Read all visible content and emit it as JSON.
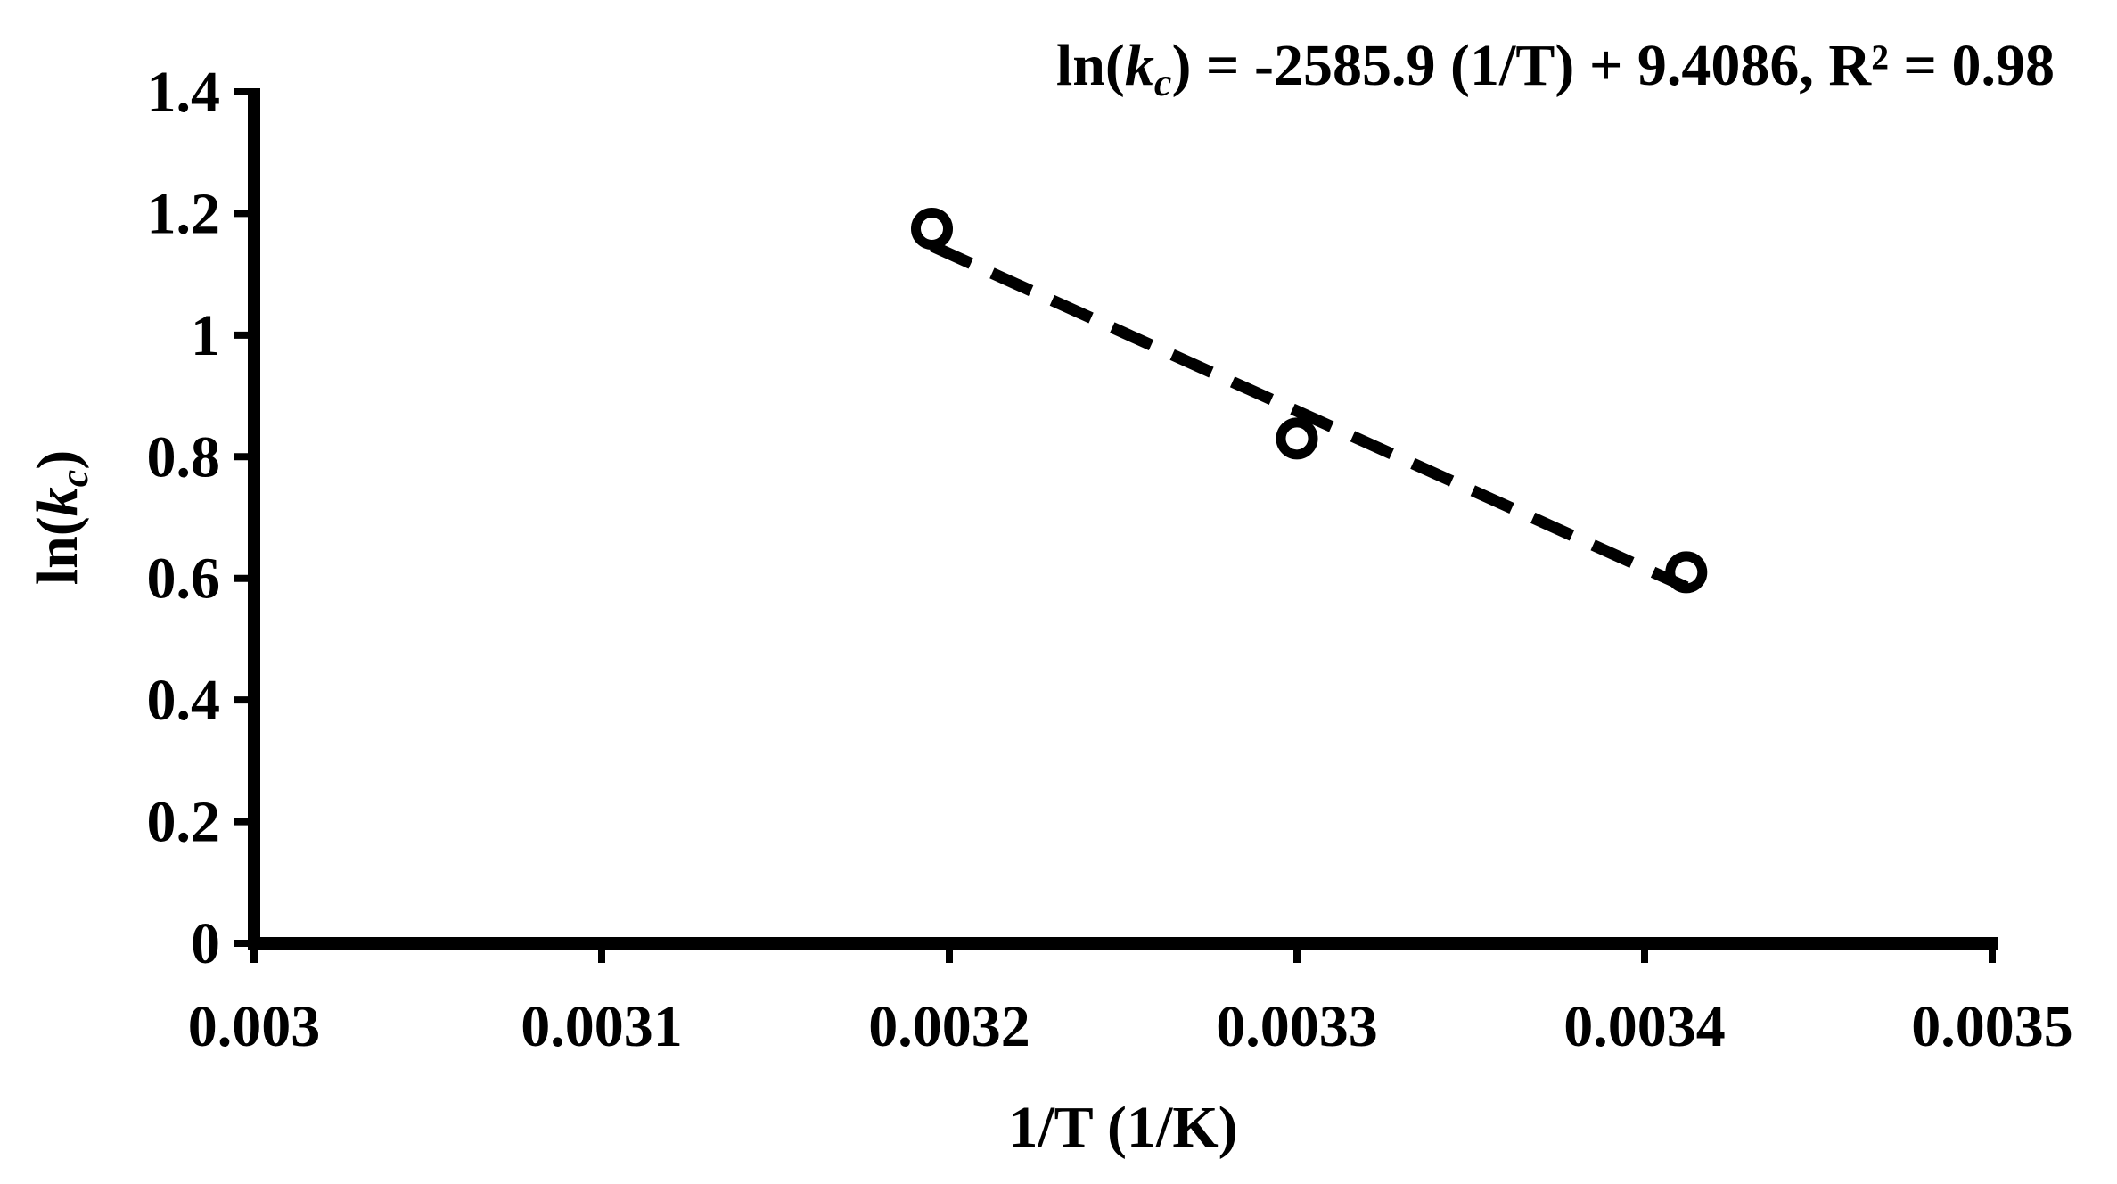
{
  "chart_data": {
    "type": "scatter",
    "title": "",
    "xlabel": "1/T (1/K)",
    "ylabel": {
      "prefix": "ln(",
      "italic": "k",
      "sub": "c",
      "suffix": ")"
    },
    "xlim": [
      0.003,
      0.0035
    ],
    "ylim": [
      0,
      1.4
    ],
    "xticks": [
      0.003,
      0.0031,
      0.0032,
      0.0033,
      0.0034,
      0.0035
    ],
    "xtick_labels": [
      "0.003",
      "0.0031",
      "0.0032",
      "0.0033",
      "0.0034",
      "0.0035"
    ],
    "yticks": [
      0,
      0.2,
      0.4,
      0.6,
      0.8,
      1,
      1.2,
      1.4
    ],
    "ytick_labels": [
      "0",
      "0.2",
      "0.4",
      "0.6",
      "0.8",
      "1",
      "1.2",
      "1.4"
    ],
    "grid": false,
    "series": [
      {
        "marker": "open-circle",
        "x": [
          0.003195,
          0.0033,
          0.003412
        ],
        "y": [
          1.175,
          0.83,
          0.61
        ]
      }
    ],
    "trendline": {
      "style": "dashed",
      "slope": -2585.9,
      "intercept": 9.4086,
      "x_range": [
        0.003195,
        0.003412
      ]
    },
    "annotation": {
      "prefix": "ln(",
      "italic": "k",
      "sub": "c",
      "suffix": ") = -2585.9 (1/T) + 9.4086, R² = 0.98"
    },
    "colors": {
      "axis": "#000000",
      "marker": "#000000",
      "trendline": "#000000"
    }
  }
}
